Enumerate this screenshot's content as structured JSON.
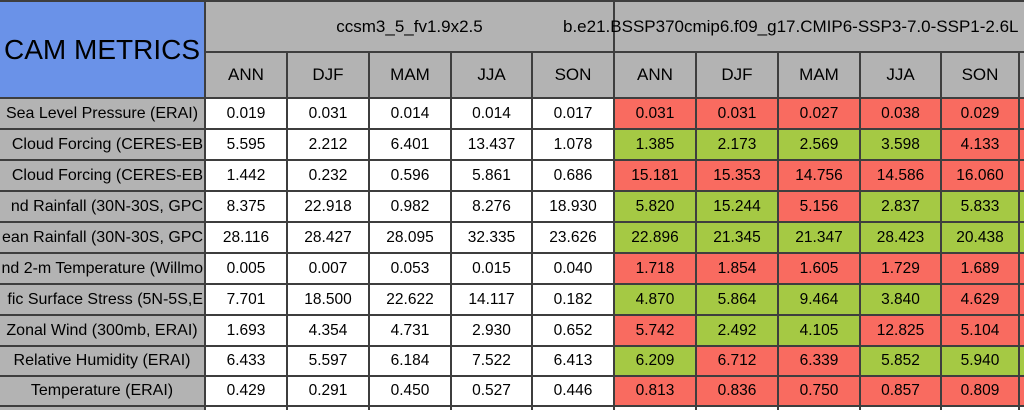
{
  "title": "CAM METRICS",
  "colors": {
    "header_blue": "#6a92e8",
    "header_gray": "#b3b3b3",
    "better_green": "#a5c944",
    "worse_red": "#f96b60",
    "border": "#3e3e3e",
    "neutral_white": "#ffffff"
  },
  "header": {
    "model1": {
      "name": "ccsm3_5_fv1.9x2.5",
      "seasons": [
        "ANN",
        "DJF",
        "MAM",
        "JJA",
        "SON"
      ]
    },
    "model2": {
      "name": "b.e21.BSSP370cmip6.f09_g17.CMIP6-SSP3-7.0-SSP1-2.6L",
      "seasons": [
        "ANN",
        "DJF",
        "MAM",
        "JJA",
        "SON"
      ]
    }
  },
  "table": {
    "rows": [
      {
        "label": "Sea Level Pressure (ERAI)",
        "label_clipped": false,
        "model1": [
          "0.019",
          "0.031",
          "0.014",
          "0.014",
          "0.017"
        ],
        "model2": [
          {
            "value": "0.031",
            "status": "worse"
          },
          {
            "value": "0.031",
            "status": "worse"
          },
          {
            "value": "0.027",
            "status": "worse"
          },
          {
            "value": "0.038",
            "status": "worse"
          },
          {
            "value": "0.029",
            "status": "worse"
          }
        ],
        "edge_status": "worse"
      },
      {
        "label": "Cloud Forcing (CERES-EB",
        "label_clipped": true,
        "model1": [
          "5.595",
          "2.212",
          "6.401",
          "13.437",
          "1.078"
        ],
        "model2": [
          {
            "value": "1.385",
            "status": "better"
          },
          {
            "value": "2.173",
            "status": "better"
          },
          {
            "value": "2.569",
            "status": "better"
          },
          {
            "value": "3.598",
            "status": "better"
          },
          {
            "value": "4.133",
            "status": "worse"
          }
        ],
        "edge_status": "worse"
      },
      {
        "label": "Cloud Forcing (CERES-EB",
        "label_clipped": true,
        "model1": [
          "1.442",
          "0.232",
          "0.596",
          "5.861",
          "0.686"
        ],
        "model2": [
          {
            "value": "15.181",
            "status": "worse"
          },
          {
            "value": "15.353",
            "status": "worse"
          },
          {
            "value": "14.756",
            "status": "worse"
          },
          {
            "value": "14.586",
            "status": "worse"
          },
          {
            "value": "16.060",
            "status": "worse"
          }
        ],
        "edge_status": "worse"
      },
      {
        "label": "nd Rainfall (30N-30S, GPC",
        "label_clipped": true,
        "model1": [
          "8.375",
          "22.918",
          "0.982",
          "8.276",
          "18.930"
        ],
        "model2": [
          {
            "value": "5.820",
            "status": "better"
          },
          {
            "value": "15.244",
            "status": "better"
          },
          {
            "value": "5.156",
            "status": "worse"
          },
          {
            "value": "2.837",
            "status": "better"
          },
          {
            "value": "5.833",
            "status": "better"
          }
        ],
        "edge_status": "better"
      },
      {
        "label": "ean Rainfall (30N-30S, GPC",
        "label_clipped": true,
        "model1": [
          "28.116",
          "28.427",
          "28.095",
          "32.335",
          "23.626"
        ],
        "model2": [
          {
            "value": "22.896",
            "status": "better"
          },
          {
            "value": "21.345",
            "status": "better"
          },
          {
            "value": "21.347",
            "status": "better"
          },
          {
            "value": "28.423",
            "status": "better"
          },
          {
            "value": "20.438",
            "status": "better"
          }
        ],
        "edge_status": "better"
      },
      {
        "label": "nd 2-m Temperature (Willmo",
        "label_clipped": true,
        "model1": [
          "0.005",
          "0.007",
          "0.053",
          "0.015",
          "0.040"
        ],
        "model2": [
          {
            "value": "1.718",
            "status": "worse"
          },
          {
            "value": "1.854",
            "status": "worse"
          },
          {
            "value": "1.605",
            "status": "worse"
          },
          {
            "value": "1.729",
            "status": "worse"
          },
          {
            "value": "1.689",
            "status": "worse"
          }
        ],
        "edge_status": "worse"
      },
      {
        "label": "fic Surface Stress (5N-5S,E",
        "label_clipped": true,
        "model1": [
          "7.701",
          "18.500",
          "22.622",
          "14.117",
          "0.182"
        ],
        "model2": [
          {
            "value": "4.870",
            "status": "better"
          },
          {
            "value": "5.864",
            "status": "better"
          },
          {
            "value": "9.464",
            "status": "better"
          },
          {
            "value": "3.840",
            "status": "better"
          },
          {
            "value": "4.629",
            "status": "worse"
          }
        ],
        "edge_status": "worse"
      },
      {
        "label": "Zonal Wind (300mb, ERAI)",
        "label_clipped": false,
        "model1": [
          "1.693",
          "4.354",
          "4.731",
          "2.930",
          "0.652"
        ],
        "model2": [
          {
            "value": "5.742",
            "status": "worse"
          },
          {
            "value": "2.492",
            "status": "better"
          },
          {
            "value": "4.105",
            "status": "better"
          },
          {
            "value": "12.825",
            "status": "worse"
          },
          {
            "value": "5.104",
            "status": "worse"
          }
        ],
        "edge_status": "worse"
      },
      {
        "label": "Relative Humidity (ERAI)",
        "label_clipped": false,
        "model1": [
          "6.433",
          "5.597",
          "6.184",
          "7.522",
          "6.413"
        ],
        "model2": [
          {
            "value": "6.209",
            "status": "better"
          },
          {
            "value": "6.712",
            "status": "worse"
          },
          {
            "value": "6.339",
            "status": "worse"
          },
          {
            "value": "5.852",
            "status": "better"
          },
          {
            "value": "5.940",
            "status": "better"
          }
        ],
        "edge_status": "better"
      },
      {
        "label": "Temperature (ERAI)",
        "label_clipped": false,
        "model1": [
          "0.429",
          "0.291",
          "0.450",
          "0.527",
          "0.446"
        ],
        "model2": [
          {
            "value": "0.813",
            "status": "worse"
          },
          {
            "value": "0.836",
            "status": "worse"
          },
          {
            "value": "0.750",
            "status": "worse"
          },
          {
            "value": "0.857",
            "status": "worse"
          },
          {
            "value": "0.809",
            "status": "worse"
          }
        ],
        "edge_status": "worse"
      }
    ]
  }
}
